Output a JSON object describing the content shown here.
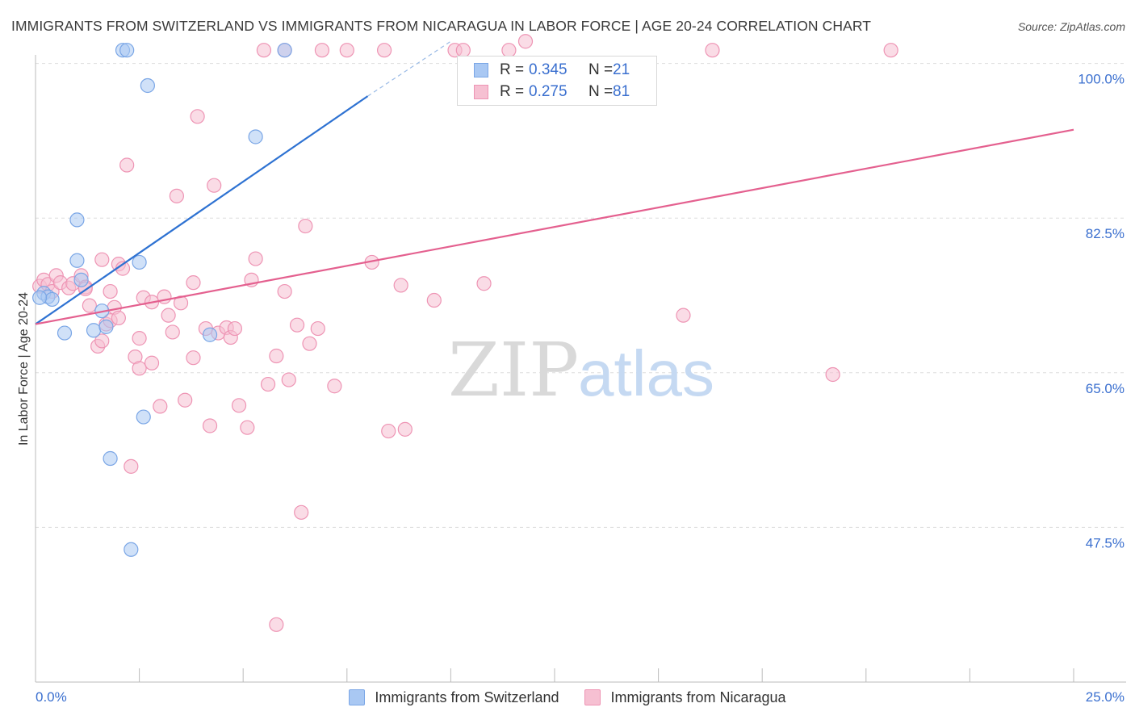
{
  "title": "IMMIGRANTS FROM SWITZERLAND VS IMMIGRANTS FROM NICARAGUA IN LABOR FORCE | AGE 20-24 CORRELATION CHART",
  "source": "Source: ZipAtlas.com",
  "watermark": {
    "zip": "ZIP",
    "atlas": "atlas"
  },
  "legend": {
    "rows": [
      {
        "r_label": "R =",
        "r_value": "0.345",
        "n_label": "N =",
        "n_value": "21"
      },
      {
        "r_label": "R =",
        "r_value": "0.275",
        "n_label": "N =",
        "n_value": "81"
      }
    ]
  },
  "bottom_legend": {
    "series1": "Immigrants from Switzerland",
    "series2": "Immigrants from Nicaragua"
  },
  "colors": {
    "blue_fill": "#a9c8f3",
    "blue_stroke": "#7aa6e6",
    "blue_line": "#2e72d2",
    "pink_fill": "#f6c0d2",
    "pink_stroke": "#ee94b4",
    "pink_line": "#e4608f",
    "tick_text": "#3a6fcf",
    "grid": "#dddddd"
  },
  "chart_data": {
    "type": "scatter",
    "title": "IMMIGRANTS FROM SWITZERLAND VS IMMIGRANTS FROM NICARAGUA IN LABOR FORCE | AGE 20-24 CORRELATION CHART",
    "xlabel": "",
    "ylabel": "In Labor Force | Age 20-24",
    "xlim": [
      0,
      25
    ],
    "ylim": [
      30,
      101.7
    ],
    "x_tick_labels": [
      "0.0%",
      "25.0%"
    ],
    "y_ticks": [
      {
        "value": 47.5,
        "label": "47.5%"
      },
      {
        "value": 65.0,
        "label": "65.0%"
      },
      {
        "value": 82.5,
        "label": "82.5%"
      },
      {
        "value": 100.0,
        "label": "100.0%"
      }
    ],
    "grid": true,
    "legend_position": "top-center",
    "series": [
      {
        "name": "Immigrants from Switzerland",
        "R": 0.345,
        "N": 21,
        "points": [
          [
            0.2,
            74.0
          ],
          [
            0.3,
            73.6
          ],
          [
            0.4,
            73.3
          ],
          [
            0.7,
            69.5
          ],
          [
            1.0,
            82.3
          ],
          [
            1.0,
            77.7
          ],
          [
            1.1,
            75.5
          ],
          [
            1.4,
            69.8
          ],
          [
            1.6,
            72.0
          ],
          [
            1.7,
            70.2
          ],
          [
            1.8,
            55.3
          ],
          [
            2.1,
            101.5
          ],
          [
            2.2,
            101.5
          ],
          [
            2.3,
            45.0
          ],
          [
            2.5,
            77.5
          ],
          [
            2.6,
            60.0
          ],
          [
            2.7,
            97.5
          ],
          [
            4.2,
            69.3
          ],
          [
            5.3,
            91.7
          ],
          [
            6.0,
            101.5
          ],
          [
            0.1,
            73.5
          ]
        ],
        "trend": {
          "x": [
            0.0,
            8.0
          ],
          "y": [
            70.5,
            96.3
          ],
          "dashed_to": [
            10.0,
            102.5
          ]
        }
      },
      {
        "name": "Immigrants from Nicaragua",
        "R": 0.275,
        "N": 81,
        "points": [
          [
            0.1,
            74.8
          ],
          [
            0.2,
            75.5
          ],
          [
            0.3,
            75.0
          ],
          [
            0.4,
            74.2
          ],
          [
            0.5,
            76.0
          ],
          [
            0.6,
            75.2
          ],
          [
            0.8,
            74.6
          ],
          [
            0.9,
            75.1
          ],
          [
            1.1,
            76.0
          ],
          [
            1.2,
            74.7
          ],
          [
            1.3,
            72.6
          ],
          [
            1.2,
            74.5
          ],
          [
            1.5,
            68.0
          ],
          [
            1.6,
            68.6
          ],
          [
            1.6,
            77.8
          ],
          [
            1.7,
            70.5
          ],
          [
            1.8,
            74.2
          ],
          [
            1.8,
            70.9
          ],
          [
            1.9,
            72.4
          ],
          [
            2.0,
            71.2
          ],
          [
            2.0,
            77.3
          ],
          [
            2.1,
            76.8
          ],
          [
            2.2,
            88.5
          ],
          [
            2.3,
            54.4
          ],
          [
            2.4,
            66.8
          ],
          [
            2.5,
            65.5
          ],
          [
            2.5,
            68.9
          ],
          [
            2.6,
            73.5
          ],
          [
            2.8,
            73.0
          ],
          [
            2.8,
            66.1
          ],
          [
            3.0,
            61.2
          ],
          [
            3.1,
            73.6
          ],
          [
            3.2,
            71.5
          ],
          [
            3.3,
            69.6
          ],
          [
            3.4,
            85.0
          ],
          [
            3.5,
            72.9
          ],
          [
            3.6,
            61.9
          ],
          [
            3.8,
            75.2
          ],
          [
            3.8,
            66.7
          ],
          [
            3.9,
            94.0
          ],
          [
            4.1,
            70.0
          ],
          [
            4.2,
            59.0
          ],
          [
            4.3,
            86.2
          ],
          [
            4.4,
            69.5
          ],
          [
            4.6,
            70.1
          ],
          [
            4.7,
            69.0
          ],
          [
            4.8,
            70.0
          ],
          [
            4.9,
            61.3
          ],
          [
            5.1,
            58.8
          ],
          [
            5.2,
            75.5
          ],
          [
            5.3,
            77.9
          ],
          [
            5.5,
            101.5
          ],
          [
            5.6,
            63.7
          ],
          [
            5.8,
            66.9
          ],
          [
            6.0,
            74.2
          ],
          [
            6.1,
            64.2
          ],
          [
            6.3,
            70.4
          ],
          [
            6.4,
            49.2
          ],
          [
            6.5,
            81.6
          ],
          [
            6.6,
            68.3
          ],
          [
            6.8,
            70.0
          ],
          [
            6.9,
            101.5
          ],
          [
            7.2,
            63.5
          ],
          [
            8.1,
            77.5
          ],
          [
            8.5,
            58.4
          ],
          [
            8.8,
            74.9
          ],
          [
            8.9,
            58.6
          ],
          [
            9.6,
            73.2
          ],
          [
            10.1,
            101.5
          ],
          [
            10.3,
            101.5
          ],
          [
            10.8,
            75.1
          ],
          [
            11.4,
            101.5
          ],
          [
            11.8,
            102.5
          ],
          [
            15.6,
            71.5
          ],
          [
            16.3,
            101.5
          ],
          [
            19.2,
            64.8
          ],
          [
            20.6,
            101.5
          ],
          [
            6.0,
            101.5
          ],
          [
            7.5,
            101.5
          ],
          [
            8.4,
            101.5
          ],
          [
            5.8,
            36.5
          ]
        ],
        "trend": {
          "x": [
            0.0,
            25.0
          ],
          "y": [
            70.5,
            92.5
          ]
        }
      }
    ]
  }
}
